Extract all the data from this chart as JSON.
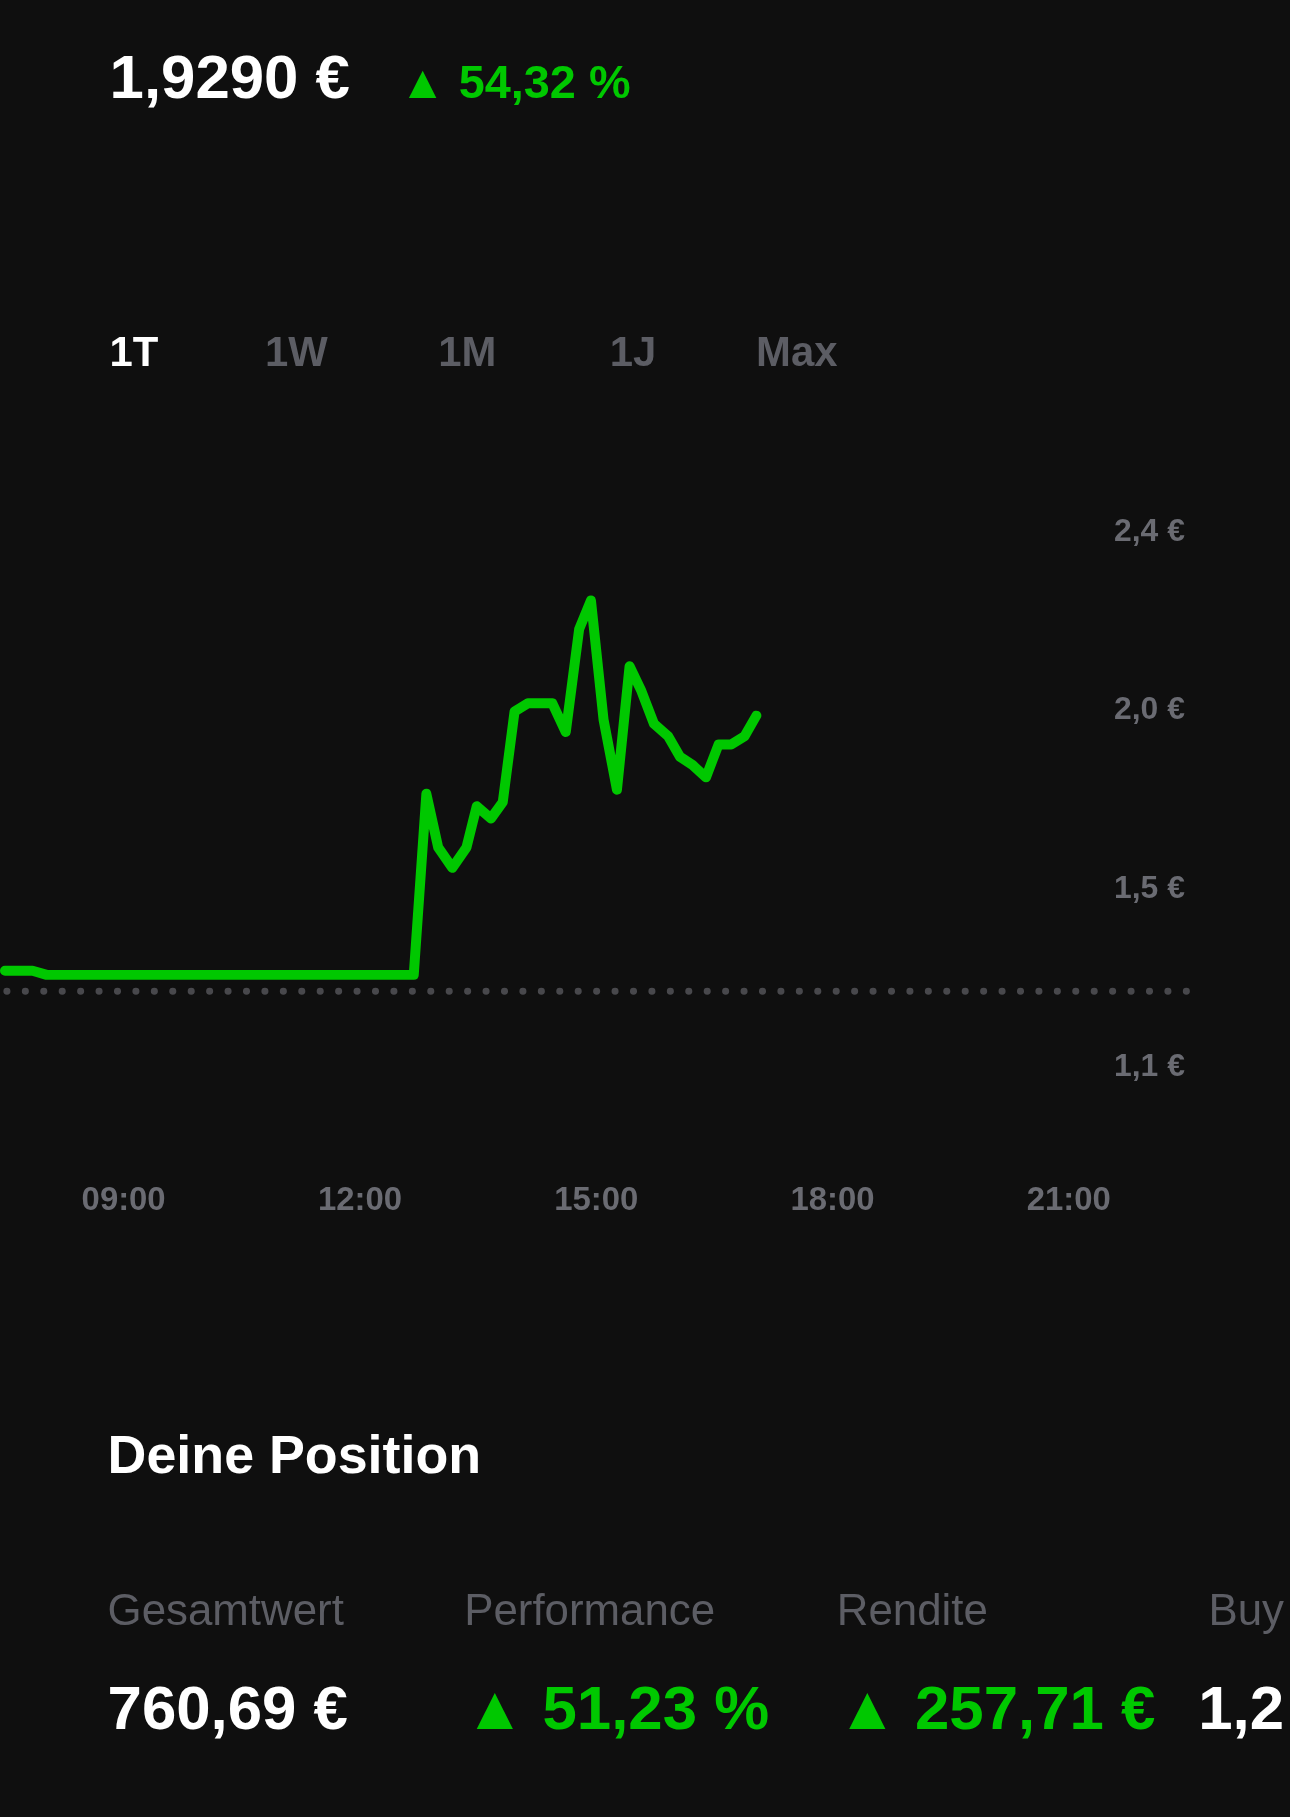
{
  "chart_data": {
    "type": "line",
    "title": "1,9290 €",
    "annotations": [
      "▲ 54,32 %",
      "1T",
      "1W",
      "1M",
      "1J",
      "Max",
      "Deine Position",
      "Gesamtwert",
      "Performance",
      "Rendite",
      "Buy",
      "760,69 €",
      "▲ 51,23 %",
      "▲ 257,71 €",
      "1,2"
    ],
    "x": [
      7.5,
      7.85,
      8.03,
      12.69,
      12.85,
      13.0,
      13.18,
      13.36,
      13.49,
      13.67,
      13.82,
      13.97,
      14.14,
      14.33,
      14.45,
      14.62,
      14.79,
      14.94,
      15.1,
      15.27,
      15.43,
      15.58,
      15.74,
      15.92,
      16.07,
      16.23,
      16.4,
      16.56,
      16.72,
      16.89,
      17.04
    ],
    "series": [
      {
        "color": "#00c800",
        "values": [
          1.33,
          1.33,
          1.32,
          1.32,
          1.76,
          1.63,
          1.58,
          1.63,
          1.73,
          1.7,
          1.74,
          1.96,
          1.98,
          1.98,
          1.98,
          1.91,
          2.16,
          2.23,
          1.94,
          1.77,
          2.07,
          2.01,
          1.93,
          1.9,
          1.85,
          1.83,
          1.8,
          1.88,
          1.88,
          1.9,
          1.95
        ]
      }
    ],
    "xlim": [
      7.5,
      22.5
    ],
    "xticks": [
      {
        "value": 9,
        "label": "09:00"
      },
      {
        "value": 12,
        "label": "12:00"
      },
      {
        "value": 15,
        "label": "15:00"
      },
      {
        "value": 18,
        "label": "18:00"
      },
      {
        "value": 21,
        "label": "21:00"
      }
    ],
    "ylim": [
      1.1,
      2.4
    ],
    "yticks": [
      {
        "value": 2.4,
        "label": "2,4 €"
      },
      {
        "value": 1.967,
        "label": "2,0 €"
      },
      {
        "value": 1.533,
        "label": "1,5 €"
      },
      {
        "value": 1.1,
        "label": "1,1 €"
      }
    ],
    "ref_lines": [
      {
        "axis": "y",
        "value": 1.28,
        "color": "#48484c",
        "line_style": "dotted"
      }
    ],
    "line_style": "solid"
  }
}
